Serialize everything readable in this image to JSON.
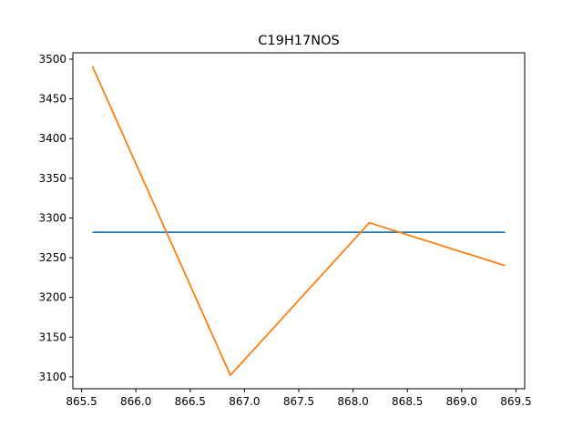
{
  "chart_data": {
    "type": "line",
    "title": "C19H17NOS",
    "xlabel": "",
    "ylabel": "",
    "xlim": [
      865.42,
      869.58
    ],
    "ylim": [
      3085,
      3508
    ],
    "x_ticks": [
      865.5,
      866.0,
      866.5,
      867.0,
      867.5,
      868.0,
      868.5,
      869.0,
      869.5
    ],
    "x_tick_labels": [
      "865.5",
      "866.0",
      "866.5",
      "867.0",
      "867.5",
      "868.0",
      "868.5",
      "869.0",
      "869.5"
    ],
    "y_ticks": [
      3100,
      3150,
      3200,
      3250,
      3300,
      3350,
      3400,
      3450,
      3500
    ],
    "y_tick_labels": [
      "3100",
      "3150",
      "3200",
      "3250",
      "3300",
      "3350",
      "3400",
      "3450",
      "3500"
    ],
    "grid": false,
    "series": [
      {
        "color": "#1f77b4",
        "x": [
          865.6,
          869.4
        ],
        "y": [
          3282,
          3282
        ]
      },
      {
        "color": "#ff7f0e",
        "x": [
          865.6,
          866.87,
          868.15,
          869.4
        ],
        "y": [
          3491,
          3102,
          3294,
          3240
        ]
      }
    ]
  }
}
